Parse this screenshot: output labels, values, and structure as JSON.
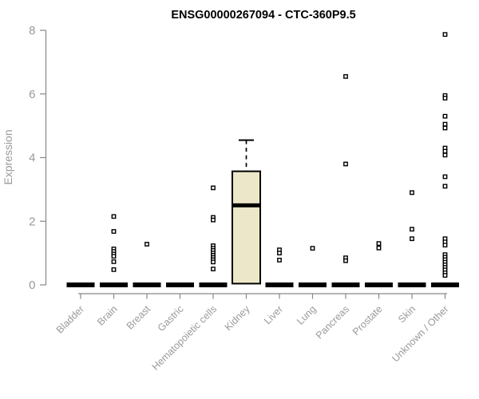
{
  "chart_data": {
    "type": "boxplot",
    "title": "ENSG00000267094 - CTC-360P9.5",
    "ylabel": "Expression",
    "ylim": [
      0,
      8
    ],
    "yticks": [
      0,
      2,
      4,
      6,
      8
    ],
    "grid": false,
    "categories": [
      "Bladder",
      "Brain",
      "Breast",
      "Gastric",
      "Hematopoietic cells",
      "Kidney",
      "Liver",
      "Lung",
      "Pancreas",
      "Prostate",
      "Skin",
      "Unknown / Other"
    ],
    "colors": {
      "box_fill": "#ece7c8",
      "box_border": "#000000",
      "median": "#000000",
      "outlier_stroke": "#000000",
      "outlier_fill": "#ffffff",
      "axis": "#878787",
      "tick_label": "#9a9a9a",
      "title": "#000000"
    },
    "boxes": [
      {
        "category": "Bladder",
        "q1": 0,
        "median": 0,
        "q3": 0,
        "whisker_low": 0,
        "whisker_high": 0,
        "outliers": []
      },
      {
        "category": "Brain",
        "q1": 0,
        "median": 0,
        "q3": 0,
        "whisker_low": 0,
        "whisker_high": 0,
        "outliers": [
          2.15,
          1.68,
          1.13,
          1.05,
          0.97,
          0.9,
          0.73,
          0.48
        ]
      },
      {
        "category": "Breast",
        "q1": 0,
        "median": 0,
        "q3": 0,
        "whisker_low": 0,
        "whisker_high": 0,
        "outliers": [
          1.28
        ]
      },
      {
        "category": "Gastric",
        "q1": 0,
        "median": 0,
        "q3": 0,
        "whisker_low": 0,
        "whisker_high": 0,
        "outliers": []
      },
      {
        "category": "Hematopoietic cells",
        "q1": 0,
        "median": 0,
        "q3": 0,
        "whisker_low": 0,
        "whisker_high": 0,
        "outliers": [
          3.05,
          2.12,
          2.04,
          1.23,
          1.15,
          1.08,
          1.0,
          0.93,
          0.86,
          0.79,
          0.72,
          0.5
        ]
      },
      {
        "category": "Kidney",
        "q1": 0.04,
        "median": 2.5,
        "q3": 3.57,
        "whisker_low": 0.04,
        "whisker_high": 4.55,
        "outliers": []
      },
      {
        "category": "Liver",
        "q1": 0,
        "median": 0,
        "q3": 0,
        "whisker_low": 0,
        "whisker_high": 0,
        "outliers": [
          1.1,
          1.0,
          0.78
        ]
      },
      {
        "category": "Lung",
        "q1": 0,
        "median": 0,
        "q3": 0,
        "whisker_low": 0,
        "whisker_high": 0,
        "outliers": [
          1.15
        ]
      },
      {
        "category": "Pancreas",
        "q1": 0,
        "median": 0,
        "q3": 0,
        "whisker_low": 0,
        "whisker_high": 0,
        "outliers": [
          6.55,
          3.8,
          0.85,
          0.76
        ]
      },
      {
        "category": "Prostate",
        "q1": 0,
        "median": 0,
        "q3": 0,
        "whisker_low": 0,
        "whisker_high": 0,
        "outliers": [
          1.3,
          1.16
        ]
      },
      {
        "category": "Skin",
        "q1": 0,
        "median": 0,
        "q3": 0,
        "whisker_low": 0,
        "whisker_high": 0,
        "outliers": [
          2.9,
          1.75,
          1.45
        ]
      },
      {
        "category": "Unknown / Other",
        "q1": 0,
        "median": 0,
        "q3": 0,
        "whisker_low": 0,
        "whisker_high": 0,
        "outliers": [
          7.87,
          5.95,
          5.87,
          5.3,
          5.05,
          4.93,
          4.3,
          4.2,
          4.08,
          3.4,
          3.1,
          1.45,
          1.35,
          1.25,
          0.95,
          0.87,
          0.79,
          0.71,
          0.63,
          0.55,
          0.47,
          0.38,
          0.3
        ]
      }
    ]
  }
}
